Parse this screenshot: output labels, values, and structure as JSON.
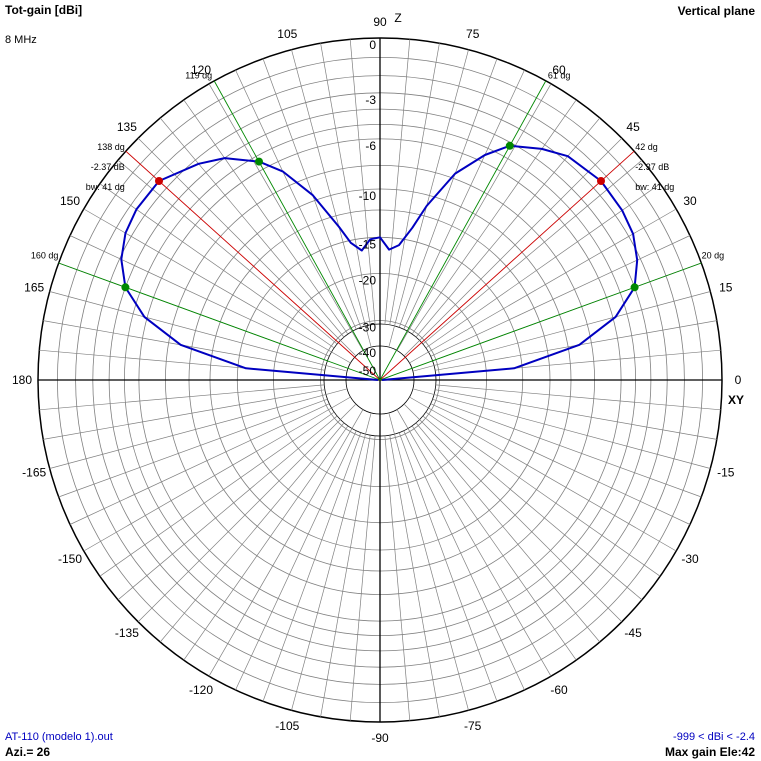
{
  "header": {
    "left_title": "Tot-gain [dBi]",
    "right_title": "Vertical plane",
    "frequency": "8 MHz"
  },
  "axes": {
    "z_label": "Z",
    "xy_label": "XY"
  },
  "footer": {
    "file": "AT-110 (modelo 1).out",
    "azimuth": "Azi.= 26",
    "range": "-999 < dBi < -2.4",
    "max_gain": "Max gain Ele:42"
  },
  "colors": {
    "trace": "#0000c0",
    "beam": "#cc0000",
    "halfpower": "#008800",
    "grid": "#808080"
  },
  "chart_data": {
    "type": "polar",
    "title": "Tot-gain [dBi]",
    "subtitle": "Vertical plane",
    "angle_labels": [
      "0",
      "15",
      "30",
      "45",
      "60",
      "75",
      "90",
      "105",
      "120",
      "135",
      "150",
      "165",
      "180",
      "-165",
      "-150",
      "-135",
      "-120",
      "-105",
      "-90",
      "-75",
      "-60",
      "-45",
      "-30",
      "-15"
    ],
    "radial_labels": [
      "0",
      "-3",
      "-6",
      "-10",
      "-15",
      "-20",
      "-30",
      "-40",
      "-50"
    ],
    "range_dbi": [
      -999,
      -2.4
    ],
    "series": [
      {
        "angle_deg": [
          0,
          5,
          10,
          15,
          20,
          25,
          30,
          35,
          42,
          50,
          55,
          61,
          65,
          70,
          75,
          78,
          82,
          86,
          90,
          94,
          98,
          102,
          105,
          110,
          115,
          119,
          125,
          130,
          138,
          145,
          150,
          155,
          160,
          165,
          170,
          175,
          180
        ],
        "gain_dbi": [
          -60,
          -16,
          -9,
          -5.8,
          -4,
          -3.2,
          -2.7,
          -2.5,
          -2.4,
          -2.7,
          -3.3,
          -4.2,
          -5.5,
          -7.6,
          -11,
          -13.5,
          -15.8,
          -16.5,
          -15,
          -15.2,
          -16.5,
          -15.3,
          -13.2,
          -9.5,
          -6.8,
          -5.4,
          -4,
          -3.3,
          -2.4,
          -2.4,
          -2.6,
          -3.1,
          -4,
          -5.8,
          -9,
          -16,
          -60
        ]
      }
    ],
    "markers": [
      {
        "angle_deg": 42,
        "label_angle": "42 dg",
        "label_gain": "-2.37 dB",
        "label_bw": "bw: 41 dg",
        "type": "max"
      },
      {
        "angle_deg": 138,
        "label_angle": "138 dg",
        "label_gain": "-2.37 dB",
        "label_bw": "bw: 41 dg",
        "type": "max"
      },
      {
        "angle_deg": 20,
        "label": "20 dg",
        "type": "halfpower"
      },
      {
        "angle_deg": 61,
        "label": "61 dg",
        "type": "halfpower"
      },
      {
        "angle_deg": 119,
        "label": "119 dg",
        "type": "halfpower"
      },
      {
        "angle_deg": 160,
        "label": "160 dg",
        "type": "halfpower"
      }
    ]
  }
}
